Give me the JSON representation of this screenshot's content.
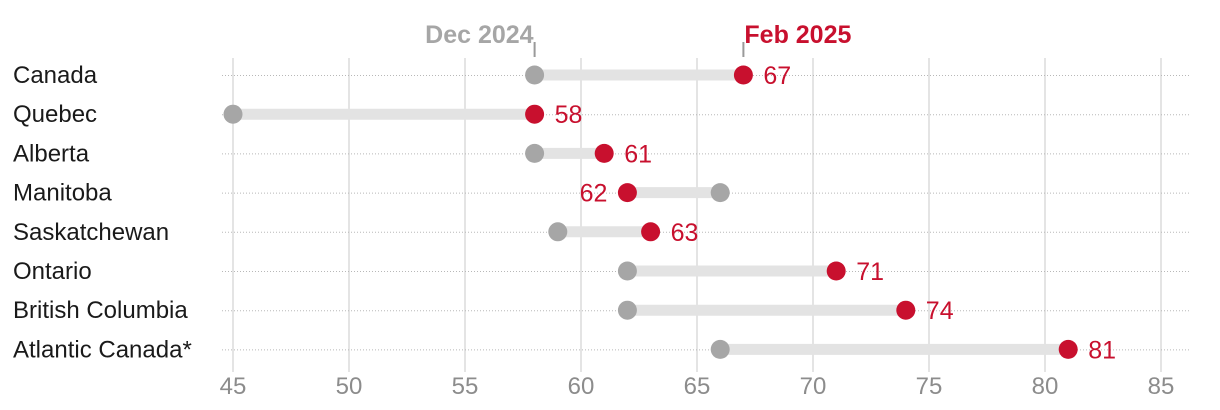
{
  "chart_data": {
    "type": "dumbbell",
    "series": [
      {
        "name": "Dec 2024",
        "values": [
          58,
          45,
          58,
          66,
          59,
          62,
          62,
          66
        ]
      },
      {
        "name": "Feb 2025",
        "values": [
          67,
          58,
          61,
          62,
          63,
          71,
          74,
          81
        ]
      }
    ],
    "categories": [
      "Canada",
      "Quebec",
      "Alberta",
      "Manitoba",
      "Saskatchewan",
      "Ontario",
      "British Columbia",
      "Atlantic Canada*"
    ],
    "value_labels": [
      "67",
      "58",
      "61",
      "62",
      "63",
      "71",
      "74",
      "81"
    ],
    "x_ticks": [
      45,
      50,
      55,
      60,
      65,
      70,
      75,
      80,
      85
    ],
    "x_tick_labels": [
      "45",
      "50",
      "55",
      "60",
      "65",
      "70",
      "75",
      "80",
      "85"
    ],
    "xlim": [
      44.5,
      86
    ],
    "grid": true,
    "colors": {
      "old": "#a6a6a6",
      "new": "#c8102e",
      "connector": "#e3e3e3",
      "grid": "#c8c8c8"
    }
  }
}
